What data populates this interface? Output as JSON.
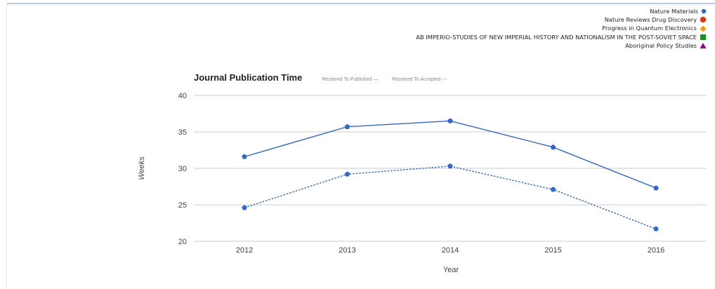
{
  "legend": {
    "items": [
      {
        "label": "Nature Materials",
        "color": "#3366cc",
        "shape": "circle"
      },
      {
        "label": "Nature Reviews Drug Discovery",
        "color": "#dc3912",
        "shape": "circle"
      },
      {
        "label": "Progress in Quantum Electronics",
        "color": "#ff9900",
        "shape": "diamond"
      },
      {
        "label": "AB IMPERIO-STUDIES OF NEW IMPERIAL HISTORY AND NATIONALISM IN THE POST-SOVIET SPACE",
        "color": "#109618",
        "shape": "square"
      },
      {
        "label": "Aboriginal Policy Studies",
        "color": "#990099",
        "shape": "triangle"
      }
    ]
  },
  "header": {
    "title": "Journal Publication Time",
    "series_key_published": "Received To Published —",
    "series_key_accepted": "Received To Accepted ---"
  },
  "chart_data": {
    "type": "line",
    "title": "Journal Publication Time",
    "xlabel": "Year",
    "ylabel": "Weeks",
    "categories": [
      "2012",
      "2013",
      "2014",
      "2015",
      "2016"
    ],
    "ylim": [
      20,
      40
    ],
    "yticks": [
      20,
      25,
      30,
      35,
      40
    ],
    "grid": true,
    "series": [
      {
        "name": "Received To Published",
        "style": "solid",
        "color": "#3366cc",
        "values": [
          31.6,
          35.7,
          36.5,
          32.9,
          27.3
        ]
      },
      {
        "name": "Received To Accepted",
        "style": "dotted",
        "color": "#3366cc",
        "values": [
          24.6,
          29.2,
          30.3,
          27.1,
          21.7
        ]
      }
    ]
  }
}
